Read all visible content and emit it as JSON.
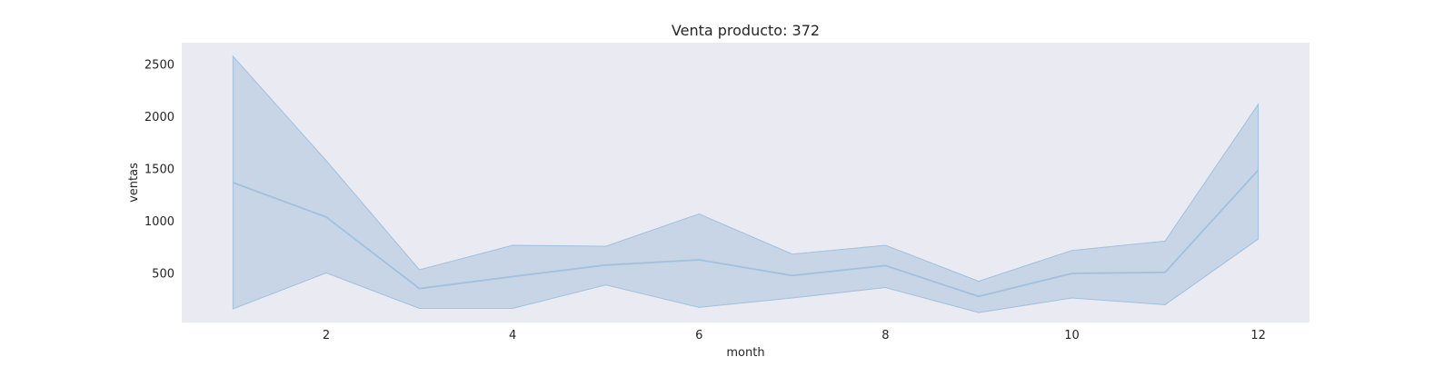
{
  "chart_data": {
    "type": "line",
    "title": "Venta producto: 372",
    "xlabel": "month",
    "ylabel": "ventas",
    "x": [
      1,
      2,
      3,
      4,
      5,
      6,
      7,
      8,
      9,
      10,
      11,
      12
    ],
    "series": [
      {
        "values": [
          1370,
          1040,
          355,
          470,
          580,
          630,
          480,
          575,
          280,
          500,
          510,
          1490
        ],
        "ci_lower": [
          160,
          505,
          165,
          165,
          390,
          175,
          265,
          365,
          125,
          265,
          200,
          830
        ],
        "ci_upper": [
          2580,
          1580,
          535,
          770,
          760,
          1070,
          685,
          770,
          425,
          720,
          810,
          2120
        ]
      }
    ],
    "xticks": [
      2,
      4,
      6,
      8,
      10,
      12
    ],
    "yticks": [
      500,
      1000,
      1500,
      2000,
      2500
    ],
    "xlim": [
      0.45,
      12.55
    ],
    "ylim": [
      30,
      2710
    ],
    "grid": false,
    "colors": {
      "plot_background": "#eaeaf2",
      "line": "#a1c1de",
      "band": "#c3d3e6"
    }
  }
}
